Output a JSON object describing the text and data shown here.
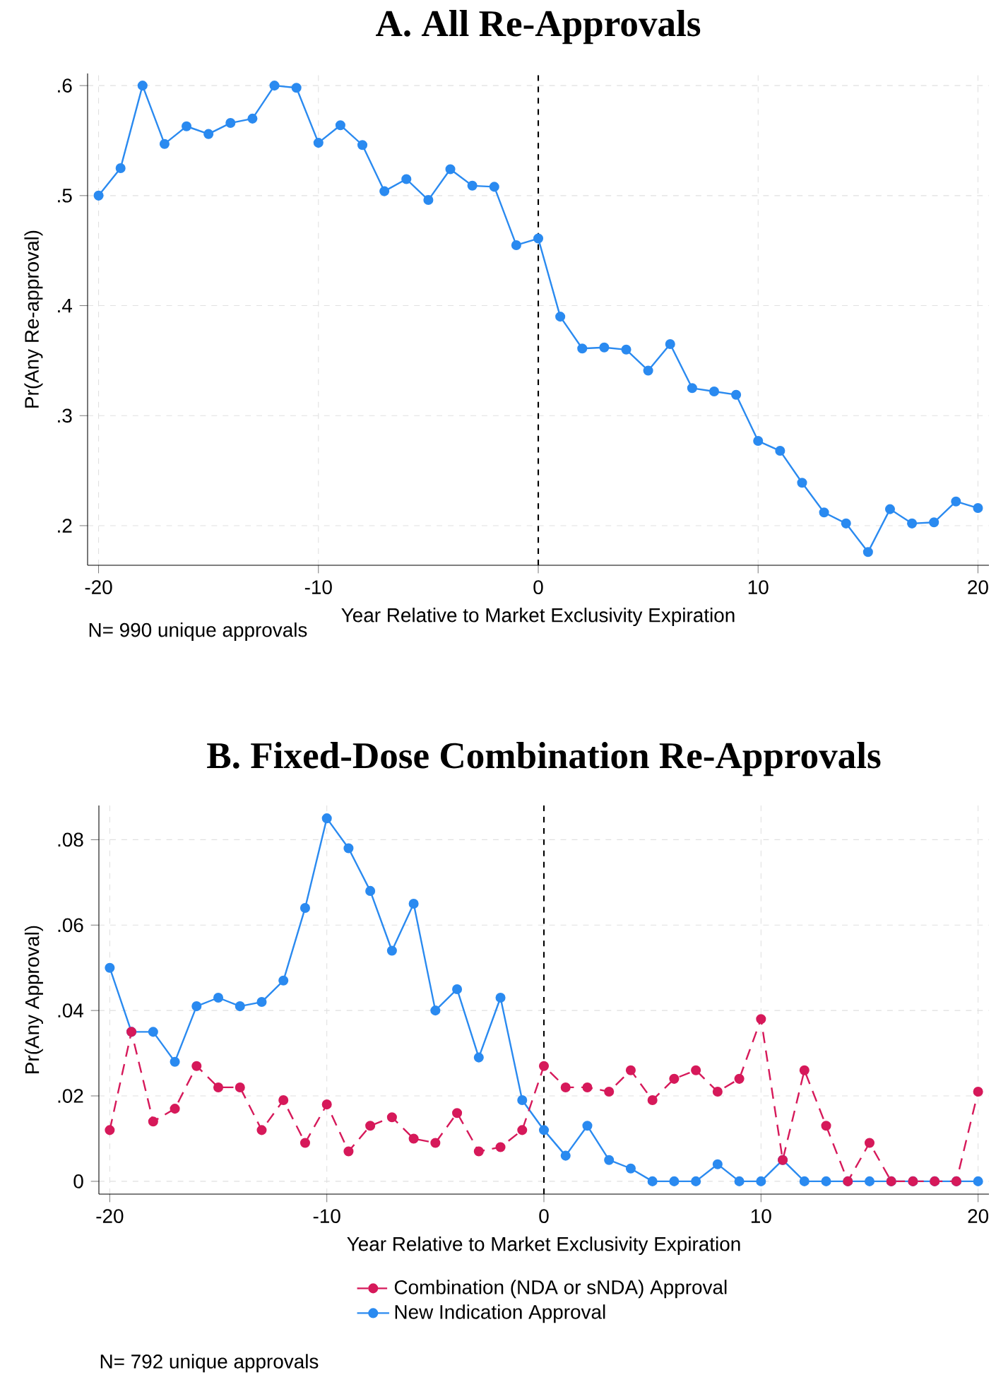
{
  "chart_data": [
    {
      "type": "line",
      "title": "A. All Re-Approvals",
      "xlabel": "Year Relative to Market Exclusivity Expiration",
      "ylabel": "Pr(Any Re-approval)",
      "x": [
        -20,
        -19,
        -18,
        -17,
        -16,
        -15,
        -14,
        -13,
        -12,
        -11,
        -10,
        -9,
        -8,
        -7,
        -6,
        -5,
        -4,
        -3,
        -2,
        -1,
        0,
        1,
        2,
        3,
        4,
        5,
        6,
        7,
        8,
        9,
        10,
        11,
        12,
        13,
        14,
        15,
        16,
        17,
        18,
        19,
        20
      ],
      "series": [
        {
          "color": "#2a8af0",
          "values": [
            0.5,
            0.525,
            0.6,
            0.547,
            0.563,
            0.556,
            0.566,
            0.57,
            0.6,
            0.598,
            0.548,
            0.564,
            0.546,
            0.504,
            0.515,
            0.496,
            0.524,
            0.509,
            0.508,
            0.455,
            0.461,
            0.39,
            0.361,
            0.362,
            0.36,
            0.341,
            0.365,
            0.325,
            0.322,
            0.319,
            0.277,
            0.268,
            0.239,
            0.212,
            0.202,
            0.176,
            0.215,
            0.202,
            0.203,
            0.222,
            0.216
          ]
        }
      ],
      "xlim": [
        -20.5,
        20.5
      ],
      "ylim": [
        0.164,
        0.611
      ],
      "xticks": [
        -20,
        -10,
        0,
        10,
        20
      ],
      "yticks": [
        {
          "value": 0.2,
          "label": ".2"
        },
        {
          "value": 0.3,
          "label": ".3"
        },
        {
          "value": 0.4,
          "label": ".4"
        },
        {
          "value": 0.5,
          "label": ".5"
        },
        {
          "value": 0.6,
          "label": ".6"
        }
      ],
      "grid": true,
      "marker": "circle",
      "line_style": "solid",
      "ref_lines": [
        {
          "axis": "x",
          "value": 0,
          "color": "#000000",
          "line_style": "dashed"
        }
      ],
      "annotations": [
        "N= 990 unique approvals"
      ]
    },
    {
      "type": "line",
      "title": "B. Fixed-Dose Combination Re-Approvals",
      "xlabel": "Year Relative to Market Exclusivity Expiration",
      "ylabel": "Pr(Any Approval)",
      "x": [
        -20,
        -19,
        -18,
        -17,
        -16,
        -15,
        -14,
        -13,
        -12,
        -11,
        -10,
        -9,
        -8,
        -7,
        -6,
        -5,
        -4,
        -3,
        -2,
        -1,
        0,
        1,
        2,
        3,
        4,
        5,
        6,
        7,
        8,
        9,
        10,
        11,
        12,
        13,
        14,
        15,
        16,
        17,
        18,
        19,
        20
      ],
      "series": [
        {
          "name": "Combination (NDA or sNDA) Approval",
          "color": "#d6195a",
          "line_style": "dashed",
          "values": [
            0.012,
            0.035,
            0.014,
            0.017,
            0.027,
            0.022,
            0.022,
            0.012,
            0.019,
            0.009,
            0.018,
            0.007,
            0.013,
            0.015,
            0.01,
            0.009,
            0.016,
            0.007,
            0.008,
            0.012,
            0.027,
            0.022,
            0.022,
            0.021,
            0.026,
            0.019,
            0.024,
            0.026,
            0.021,
            0.024,
            0.038,
            0.005,
            0.026,
            0.013,
            0,
            0.009,
            0,
            0,
            0,
            0,
            0.021
          ]
        },
        {
          "name": "New Indication Approval",
          "color": "#2a8af0",
          "line_style": "solid",
          "values": [
            0.05,
            0.035,
            0.035,
            0.028,
            0.041,
            0.043,
            0.041,
            0.042,
            0.047,
            0.064,
            0.085,
            0.078,
            0.068,
            0.054,
            0.065,
            0.04,
            0.045,
            0.029,
            0.043,
            0.019,
            0.012,
            0.006,
            0.013,
            0.005,
            0.003,
            0,
            0,
            0,
            0.004,
            0,
            0,
            0.005,
            0,
            0,
            0,
            0,
            0,
            0,
            0,
            0,
            0
          ]
        }
      ],
      "xlim": [
        -20.5,
        20.5
      ],
      "ylim": [
        -0.003,
        0.088
      ],
      "xticks": [
        -20,
        -10,
        0,
        10,
        20
      ],
      "yticks": [
        0,
        {
          "value": 0.02,
          "label": ".02"
        },
        {
          "value": 0.04,
          "label": ".04"
        },
        {
          "value": 0.06,
          "label": ".06"
        },
        {
          "value": 0.08,
          "label": ".08"
        }
      ],
      "grid": true,
      "legend": "bottom",
      "marker": "circle",
      "ref_lines": [
        {
          "axis": "x",
          "value": 0,
          "color": "#000000",
          "line_style": "dashed"
        }
      ],
      "annotations": [
        "N= 792 unique approvals"
      ]
    }
  ]
}
